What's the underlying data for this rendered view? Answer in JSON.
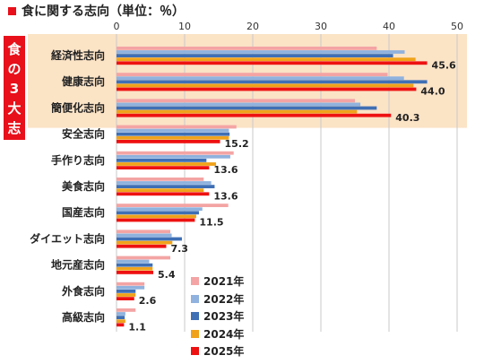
{
  "chart_data": {
    "type": "bar",
    "orientation": "horizontal",
    "title": "食に関する志向（単位：％）",
    "group_label": "食の3大志向",
    "categories": [
      "経済性志向",
      "健康志向",
      "簡便化志向",
      "安全志向",
      "手作り志向",
      "美食志向",
      "国産志向",
      "ダイエット志向",
      "地元産志向",
      "外食志向",
      "高級志向"
    ],
    "highlighted_categories": [
      "経済性志向",
      "健康志向",
      "簡便化志向"
    ],
    "xlim": [
      0,
      50
    ],
    "xticks": [
      "0",
      "10",
      "20",
      "30",
      "40",
      "50"
    ],
    "legend_position": "bottom-right",
    "series": [
      {
        "name": "2021年",
        "color": "#f4a4a4",
        "values": [
          38.2,
          39.8,
          35.0,
          17.6,
          17.2,
          12.8,
          16.4,
          7.9,
          7.9,
          4.1,
          2.8
        ]
      },
      {
        "name": "2022年",
        "color": "#8fb2de",
        "values": [
          42.3,
          42.2,
          35.8,
          16.5,
          16.7,
          13.9,
          12.6,
          8.1,
          4.8,
          4.1,
          1.3
        ]
      },
      {
        "name": "2023年",
        "color": "#3f6fb5",
        "values": [
          40.6,
          45.6,
          38.2,
          16.6,
          13.2,
          14.4,
          12.1,
          9.6,
          5.3,
          2.8,
          1.2
        ]
      },
      {
        "name": "2024年",
        "color": "#f0a21a",
        "values": [
          43.9,
          43.6,
          35.3,
          16.5,
          14.6,
          12.8,
          11.7,
          8.2,
          5.3,
          2.8,
          1.3
        ]
      },
      {
        "name": "2025年",
        "color": "#ee1111",
        "values": [
          45.6,
          44.0,
          40.3,
          15.2,
          13.6,
          13.6,
          11.5,
          7.3,
          5.4,
          2.6,
          1.1
        ]
      }
    ],
    "data_labels": [
      "45.6",
      "44.0",
      "40.3",
      "15.2",
      "13.6",
      "13.6",
      "11.5",
      "7.3",
      "5.4",
      "2.6",
      "1.1"
    ]
  },
  "colors": {
    "title_marker": "#e8101a",
    "group_box": "#e8101a",
    "highlight_band": "#fbe3c6",
    "grid": "#c8c8c8",
    "text": "#222222"
  }
}
